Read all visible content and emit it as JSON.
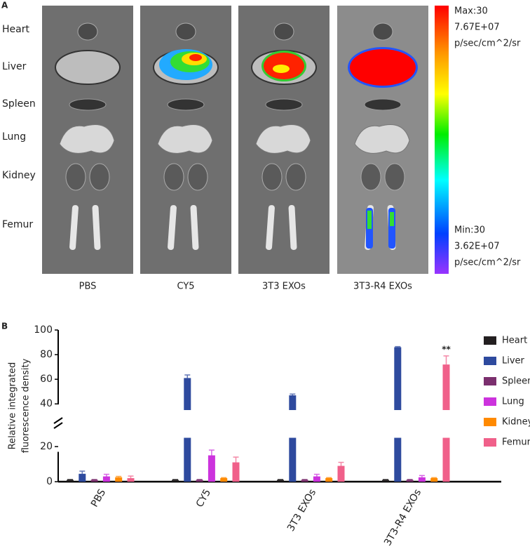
{
  "panel_a": {
    "panel_label": "A",
    "organs": [
      "Heart",
      "Liver",
      "Spleen",
      "Lung",
      "Kidney",
      "Femur"
    ],
    "groups": [
      "PBS",
      "CY5",
      "3T3 EXOs",
      "3T3-R4 EXOs"
    ],
    "colorbar_max": [
      "Max:30",
      "7.67E+07",
      "p/sec/cm^2/sr"
    ],
    "colorbar_min": [
      "Min:30",
      "3.62E+07",
      "p/sec/cm^2/sr"
    ]
  },
  "chart_data": {
    "type": "bar",
    "panel_label": "B",
    "ylabel": [
      "Relative integrated",
      "fluorescence density"
    ],
    "categories": [
      "PBS",
      "CY5",
      "3T3 EXOs",
      "3T3-R4 EXOs"
    ],
    "series": [
      {
        "name": "Heart",
        "color": "#231f20",
        "values": [
          1,
          1,
          1,
          1
        ],
        "errors": [
          0.3,
          0.3,
          0.3,
          0.3
        ]
      },
      {
        "name": "Liver",
        "color": "#2e4a9e",
        "values": [
          4.5,
          61,
          47,
          86
        ],
        "errors": [
          1.5,
          2.5,
          1,
          0.5
        ]
      },
      {
        "name": "Spleen",
        "color": "#7b2f6e",
        "values": [
          1,
          1,
          1,
          1
        ],
        "errors": [
          0.3,
          0.3,
          0.3,
          0.3
        ]
      },
      {
        "name": "Lung",
        "color": "#cc33dd",
        "values": [
          3,
          15,
          3,
          2.5
        ],
        "errors": [
          1.2,
          3,
          1.2,
          1
        ]
      },
      {
        "name": "Kidney",
        "color": "#ff8a00",
        "values": [
          2.5,
          2,
          2,
          2
        ],
        "errors": [
          0.5,
          0.3,
          0.3,
          0.3
        ]
      },
      {
        "name": "Femur",
        "color": "#f0608a",
        "values": [
          2,
          11,
          9,
          72
        ],
        "errors": [
          1.2,
          3,
          2,
          7
        ]
      }
    ],
    "ylim": [
      0,
      100
    ],
    "ybreak": [
      25,
      35
    ],
    "yticks": [
      0,
      20,
      40,
      60,
      80,
      100
    ],
    "annotation": {
      "text": "**",
      "series": 5,
      "category": 3
    }
  }
}
